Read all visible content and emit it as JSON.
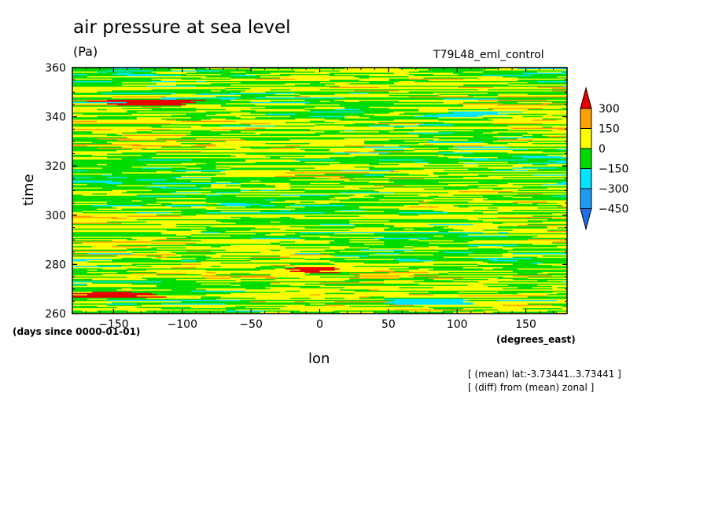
{
  "chart_data": {
    "type": "heatmap",
    "title": "air pressure at sea level",
    "units": "(Pa)",
    "run_label": "T79L48_eml_control",
    "xlabel": "lon",
    "ylabel": "time",
    "x_units": "(degrees_east)",
    "y_units": "(days since 0000-01-01)",
    "xlim": [
      -180,
      180
    ],
    "ylim": [
      260,
      360
    ],
    "x_ticks": [
      -150,
      -100,
      -50,
      0,
      50,
      100,
      150
    ],
    "y_ticks": [
      260,
      280,
      300,
      320,
      340,
      360
    ],
    "notes": [
      "[ (mean) lat:-3.73441..3.73441 ]",
      "[ (diff) from (mean) zonal ]"
    ],
    "colorbar": {
      "levels": [
        -450,
        -300,
        -150,
        0,
        150,
        300
      ],
      "labels": [
        "300",
        "150",
        "0",
        "-150",
        "-300",
        "-450"
      ],
      "colors": [
        "#1e6ee6",
        "#1e9bf0",
        "#00e6ff",
        "#00dc00",
        "#ffff00",
        "#ffa000",
        "#e60000"
      ]
    },
    "features": [
      {
        "name": "positive anomaly streak",
        "lon": [
          -160,
          -90
        ],
        "time": 346,
        "value": 300
      },
      {
        "name": "positive anomaly streak",
        "lon": [
          -20,
          10
        ],
        "time": 278,
        "value": 300
      },
      {
        "name": "positive anomaly streak",
        "lon": [
          -170,
          -130
        ],
        "time": 268,
        "value": 300
      },
      {
        "name": "negative anomaly patch",
        "lon": [
          80,
          130
        ],
        "time": 341,
        "value": -300
      },
      {
        "name": "negative anomaly patch",
        "lon": [
          40,
          110
        ],
        "time": 265,
        "value": -300
      }
    ]
  }
}
